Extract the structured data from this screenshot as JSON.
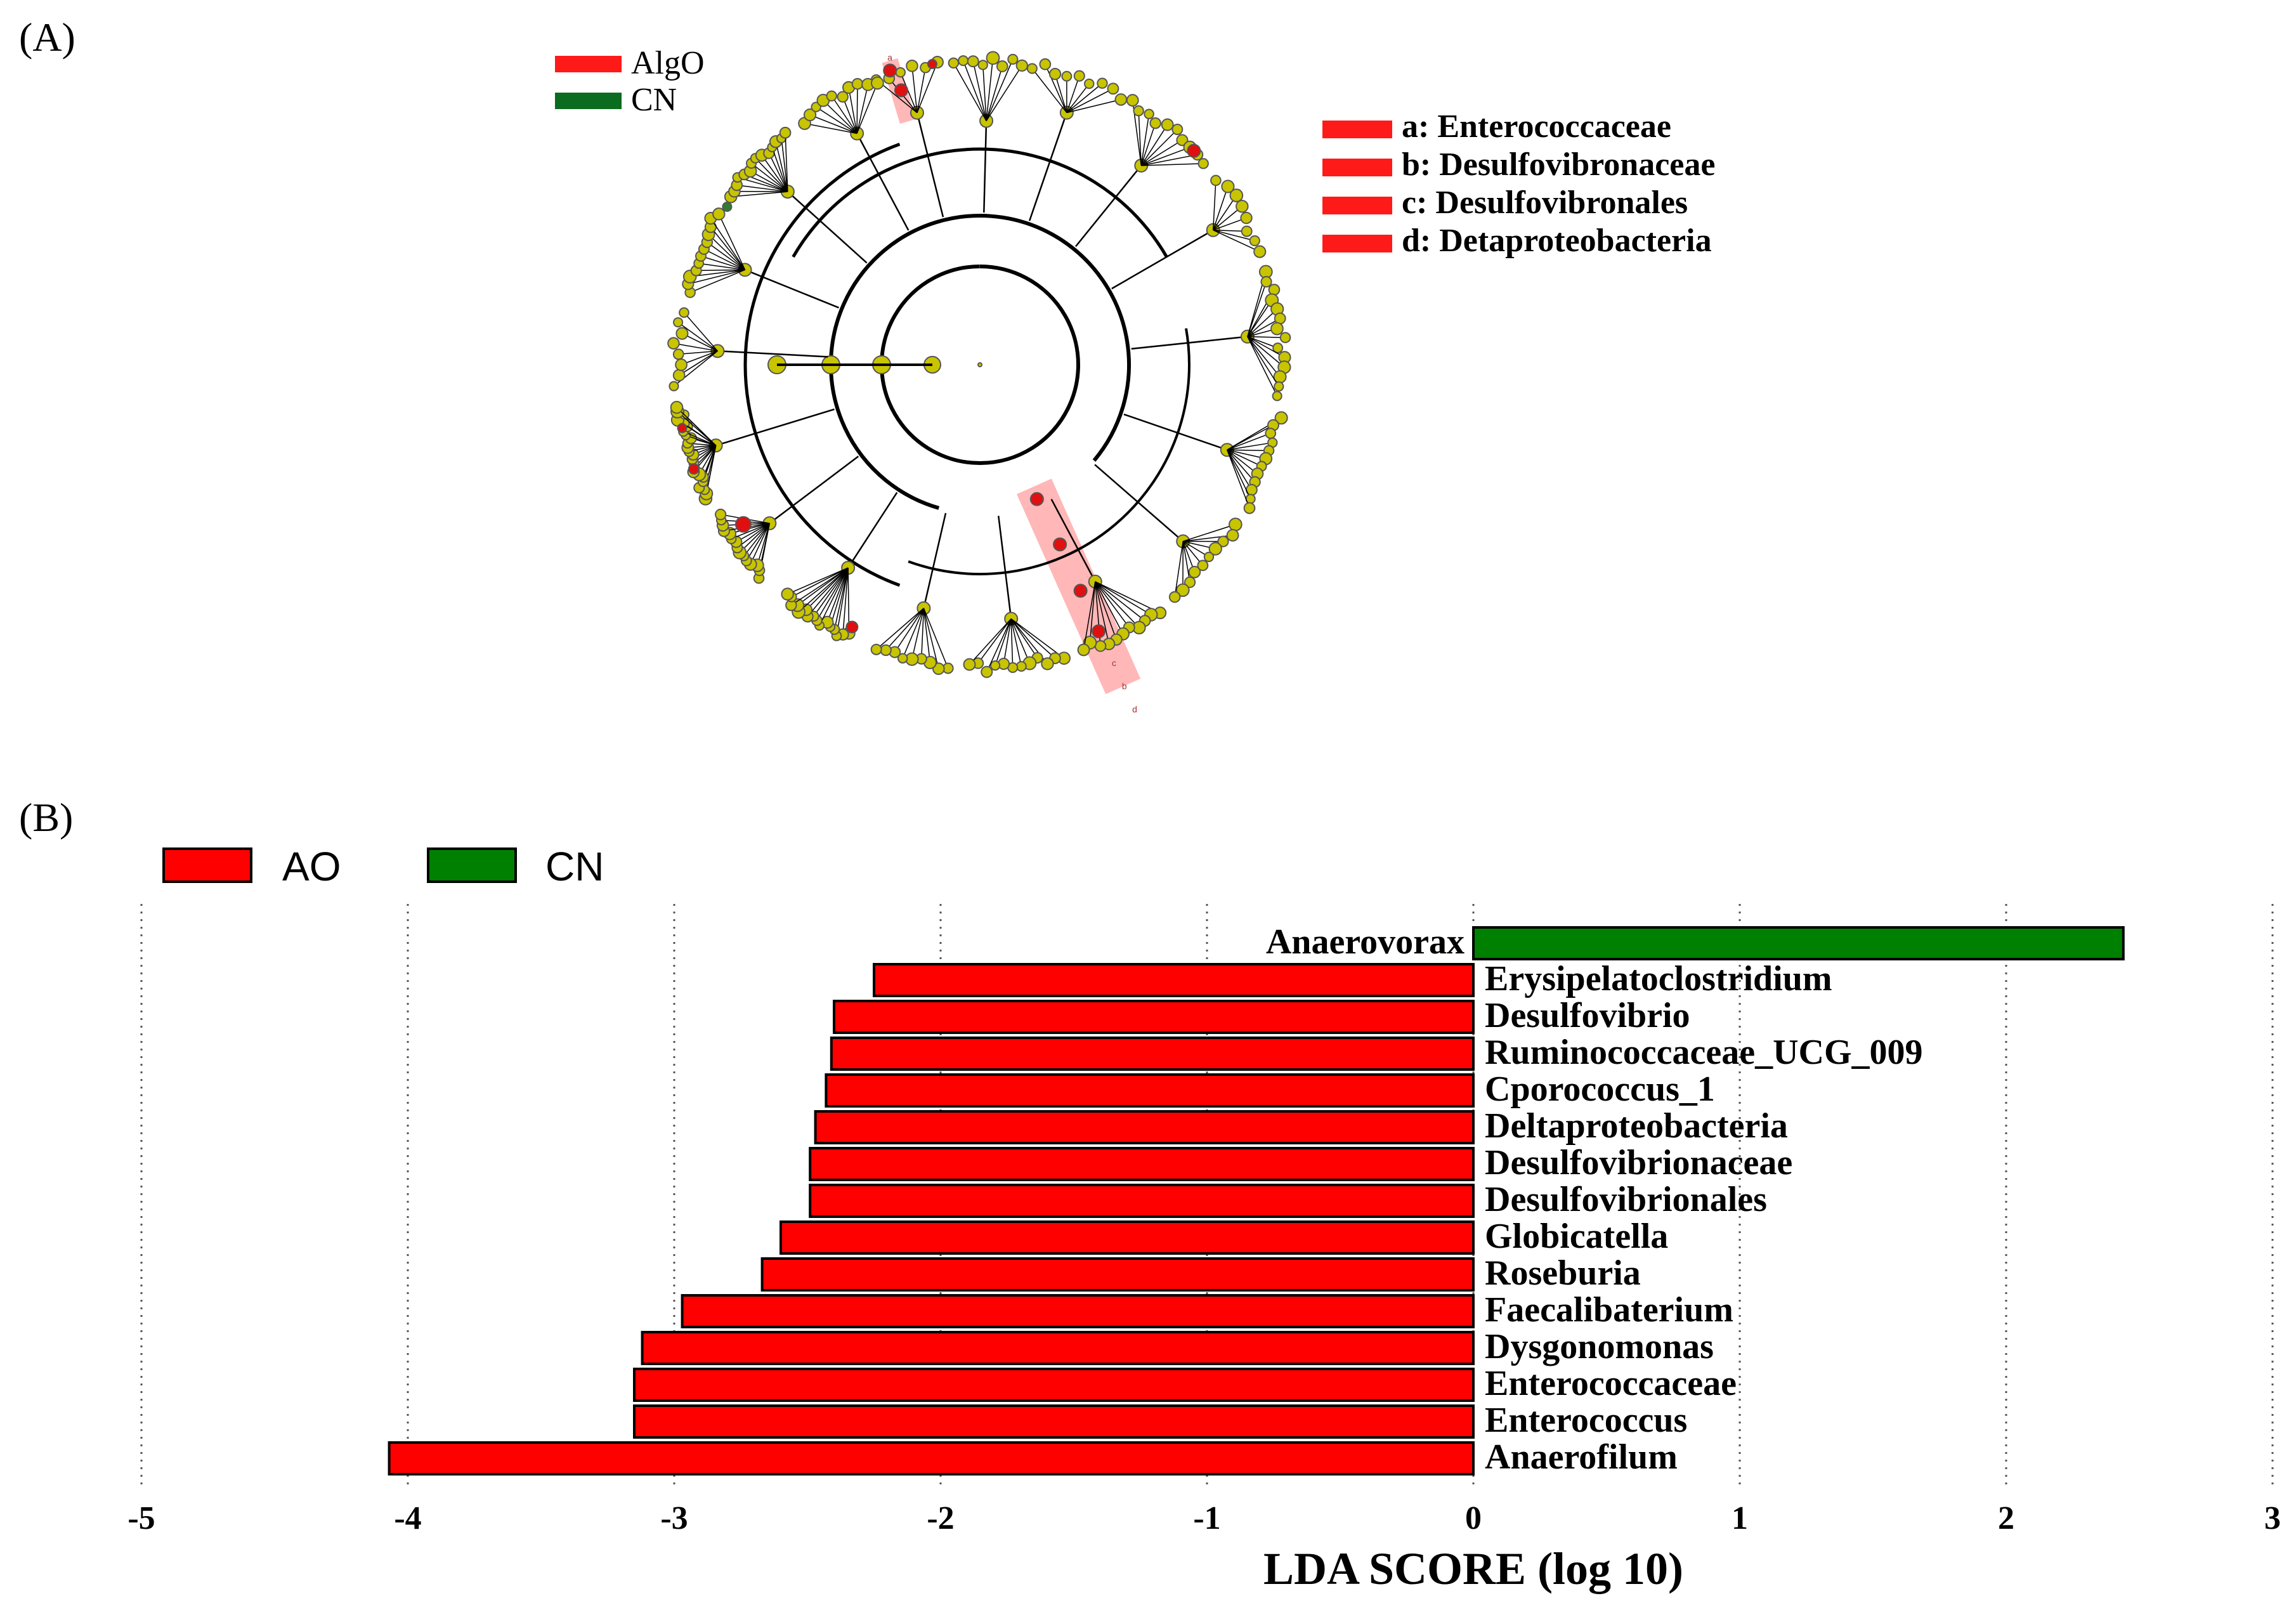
{
  "panel_a": {
    "label": "(A)",
    "legend": [
      {
        "name": "AlgO",
        "color": "#ff1a1a"
      },
      {
        "name": "CN",
        "color": "#0b6b1f"
      }
    ],
    "key": [
      {
        "text": "a: Enterococcaceae"
      },
      {
        "text": "b: Desulfovibronaceae"
      },
      {
        "text": "c: Desulfovibronales"
      },
      {
        "text": "d: Detaproteobacteria"
      }
    ],
    "highlight_letters": [
      "a",
      "b",
      "c",
      "d"
    ],
    "node_color": "#c8c400",
    "enriched_color": "#e01010"
  },
  "panel_b": {
    "label": "(B)"
  },
  "chart_data": {
    "type": "bar",
    "orientation": "horizontal",
    "title": "",
    "xlabel": "LDA SCORE (log 10)",
    "ylabel": "",
    "xlim": [
      -5,
      3
    ],
    "xticks": [
      -5,
      -4,
      -3,
      -2,
      -1,
      0,
      1,
      2,
      3
    ],
    "grid": true,
    "legend": [
      {
        "name": "AO",
        "color": "#ff0000"
      },
      {
        "name": "CN",
        "color": "#008000"
      }
    ],
    "categories": [
      "Anaerovorax",
      "Erysipelatoclostridium",
      "Desulfovibrio",
      "Ruminococcaceae_UCG_009",
      "Cporococcus_1",
      "Deltaproteobacteria",
      "Desulfovibrionaceae",
      "Desulfovibrionales",
      "Globicatella",
      "Roseburia",
      "Faecalibaterium",
      "Dysgonomonas",
      "Enterococcaceae",
      "Enterococcus",
      "Anaerofilum"
    ],
    "values": [
      2.44,
      -2.25,
      -2.4,
      -2.41,
      -2.43,
      -2.47,
      -2.49,
      -2.49,
      -2.6,
      -2.67,
      -2.97,
      -3.12,
      -3.15,
      -3.15,
      -4.07
    ],
    "groups": [
      "CN",
      "AO",
      "AO",
      "AO",
      "AO",
      "AO",
      "AO",
      "AO",
      "AO",
      "AO",
      "AO",
      "AO",
      "AO",
      "AO",
      "AO"
    ]
  }
}
